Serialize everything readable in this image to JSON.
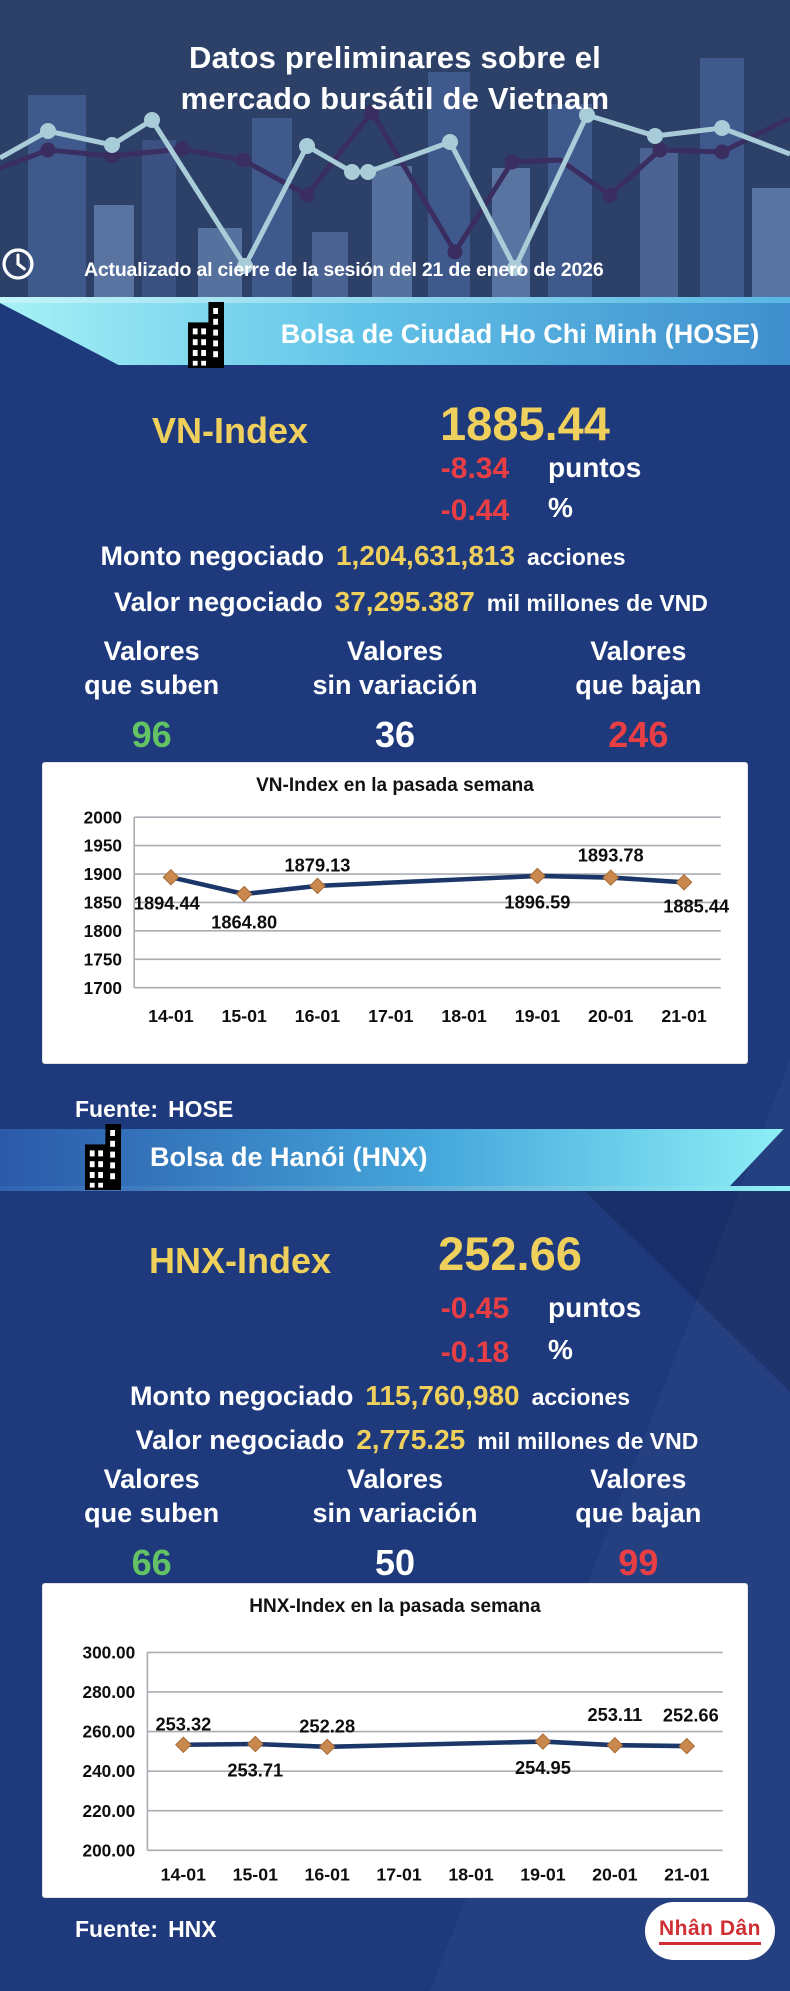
{
  "colors": {
    "background": "#1e3a7c",
    "header_background": "#2c4068",
    "accent_yellow": "#f0d05c",
    "negative_red": "#ea3e45",
    "positive_green": "#63c364",
    "logo_red": "#cf2e34",
    "banner_hose_gradient_left": "#a7f2f6",
    "banner_hose_gradient_right": "#3f8ecd",
    "banner_hnx_gradient_left": "#2b59a8",
    "banner_hnx_gradient_right": "#8ff0f6"
  },
  "header": {
    "title": "Datos preliminares sobre el mercado bursátil de Vietnam",
    "updated": "Actualizado al cierre de la sesión del 21 de enero de 2026"
  },
  "hose": {
    "banner_title": "Bolsa de Ciudad Ho Chi Minh (HOSE)",
    "index_label": "VN-Index",
    "index_value": "1885.44",
    "change_points": "-8.34",
    "change_points_unit": "puntos",
    "change_percent": "-0.44",
    "change_percent_unit": "%",
    "volume_label": "Monto negociado",
    "volume_value": "1,204,631,813",
    "volume_unit": "acciones",
    "turnover_label": "Valor negociado",
    "turnover_value": "37,295.387",
    "turnover_unit": "mil millones de VND",
    "movers": [
      {
        "line1": "Valores",
        "line2": "que suben",
        "value": "96"
      },
      {
        "line1": "Valores",
        "line2": "sin variación",
        "value": "36"
      },
      {
        "line1": "Valores",
        "line2": "que bajan",
        "value": "246"
      }
    ],
    "source_label": "Fuente:",
    "source_name": "HOSE"
  },
  "hnx": {
    "banner_title": "Bolsa de Hanói (HNX)",
    "index_label": "HNX-Index",
    "index_value": "252.66",
    "change_points": "-0.45",
    "change_points_unit": "puntos",
    "change_percent": "-0.18",
    "change_percent_unit": "%",
    "volume_label": "Monto negociado",
    "volume_value": "115,760,980",
    "volume_unit": "acciones",
    "turnover_label": "Valor negociado",
    "turnover_value": "2,775.25",
    "turnover_unit": "mil millones de VND",
    "movers": [
      {
        "line1": "Valores",
        "line2": "que suben",
        "value": "66"
      },
      {
        "line1": "Valores",
        "line2": "sin variación",
        "value": "50"
      },
      {
        "line1": "Valores",
        "line2": "que bajan",
        "value": "99"
      }
    ],
    "source_label": "Fuente:",
    "source_name": "HNX"
  },
  "footer": {
    "logo_text": "Nhân Dân"
  },
  "chart_data": [
    {
      "type": "line",
      "title": "VN-Index en la pasada semana",
      "categories": [
        "14-01",
        "15-01",
        "16-01",
        "17-01",
        "18-01",
        "19-01",
        "20-01",
        "21-01"
      ],
      "values": [
        1894.44,
        1864.8,
        1879.13,
        null,
        null,
        1896.59,
        1893.78,
        1885.44
      ],
      "point_labels": [
        "1894.44",
        "1864.80",
        "1879.13",
        null,
        null,
        "1896.59",
        "1893.78",
        "1885.44"
      ],
      "label_offsets": [
        [
          -4,
          32
        ],
        [
          0,
          34
        ],
        [
          0,
          -14
        ],
        null,
        null,
        [
          0,
          32
        ],
        [
          0,
          -16
        ],
        [
          12,
          30
        ]
      ],
      "yticks": [
        2000,
        1950,
        1900,
        1850,
        1800,
        1750,
        1700
      ],
      "ytick_labels": [
        "2000",
        "1950",
        "1900",
        "1850",
        "1800",
        "1750",
        "1700"
      ],
      "ylim": [
        1700,
        2000
      ],
      "grid": true,
      "legend": "none",
      "line_color": "#1b3668",
      "marker_color": "#c9884d"
    },
    {
      "type": "line",
      "title": "HNX-Index en la pasada semana",
      "categories": [
        "14-01",
        "15-01",
        "16-01",
        "17-01",
        "18-01",
        "19-01",
        "20-01",
        "21-01"
      ],
      "values": [
        253.32,
        253.71,
        252.28,
        null,
        null,
        254.95,
        253.11,
        252.66
      ],
      "point_labels": [
        "253.32",
        "253.71",
        "252.28",
        null,
        null,
        "254.95",
        "253.11",
        "252.66"
      ],
      "label_offsets": [
        [
          0,
          -14
        ],
        [
          0,
          32
        ],
        [
          0,
          -14
        ],
        null,
        null,
        [
          0,
          32
        ],
        [
          0,
          -24
        ],
        [
          4,
          -24
        ]
      ],
      "yticks": [
        300,
        280,
        260,
        240,
        220,
        200
      ],
      "ytick_labels": [
        "300.00",
        "280.00",
        "260.00",
        "240.00",
        "220.00",
        "200.00"
      ],
      "ylim": [
        200,
        300
      ],
      "grid": true,
      "legend": "none",
      "line_color": "#1b3668",
      "marker_color": "#c9884d"
    }
  ]
}
